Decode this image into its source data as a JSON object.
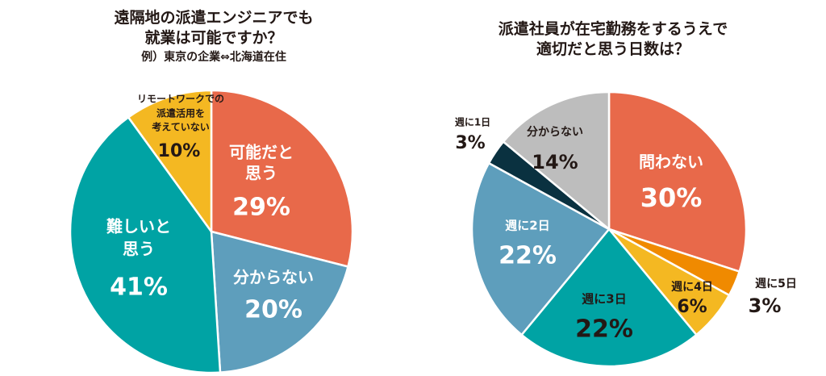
{
  "chart_data": [
    {
      "type": "pie",
      "title": "遠隔地の派遣エンジニアでも就業は可能ですか？",
      "title_lines": [
        "遠隔地の派遣エンジニアでも",
        "就業は可能ですか？"
      ],
      "subtitle": "例）東京の企業⇔北海道在住",
      "slices": [
        {
          "label": "可能だと思う",
          "label_lines": [
            "可能だと",
            "思う"
          ],
          "value": 29,
          "value_text": "29%",
          "color": "#E8694A"
        },
        {
          "label": "分からない",
          "label_lines": [
            "分からない"
          ],
          "value": 20,
          "value_text": "20%",
          "color": "#5E9EBC"
        },
        {
          "label": "難しいと思う",
          "label_lines": [
            "難しいと",
            "思う"
          ],
          "value": 41,
          "value_text": "41%",
          "color": "#00A3A4"
        },
        {
          "label": "リモートワークでの派遣活用を考えていない",
          "label_lines": [
            "リモートワークでの",
            "派遣活用を",
            "考えていない"
          ],
          "value": 10,
          "value_text": "10%",
          "color": "#F4B822"
        }
      ]
    },
    {
      "type": "pie",
      "title": "派遣社員が在宅勤務をするうえで適切だと思う日数は？",
      "title_lines": [
        "派遣社員が在宅勤務をするうえで",
        "適切だと思う日数は？"
      ],
      "slices": [
        {
          "label": "問わない",
          "label_lines": [
            "問わない"
          ],
          "value": 30,
          "value_text": "30%",
          "color": "#E8694A"
        },
        {
          "label": "週に5日",
          "label_lines": [
            "週に5日"
          ],
          "value": 3,
          "value_text": "3%",
          "color": "#F08A00"
        },
        {
          "label": "週に4日",
          "label_lines": [
            "週に4日"
          ],
          "value": 6,
          "value_text": "6%",
          "color": "#F4B822"
        },
        {
          "label": "週に3日",
          "label_lines": [
            "週に3日"
          ],
          "value": 22,
          "value_text": "22%",
          "color": "#00A3A4"
        },
        {
          "label": "週に2日",
          "label_lines": [
            "週に2日"
          ],
          "value": 22,
          "value_text": "22%",
          "color": "#5E9EBC"
        },
        {
          "label": "週に1日",
          "label_lines": [
            "週に1日"
          ],
          "value": 3,
          "value_text": "3%",
          "color": "#0A3140"
        },
        {
          "label": "分からない",
          "label_lines": [
            "分からない"
          ],
          "value": 14,
          "value_text": "14%",
          "color": "#BDBDBD"
        }
      ]
    }
  ]
}
